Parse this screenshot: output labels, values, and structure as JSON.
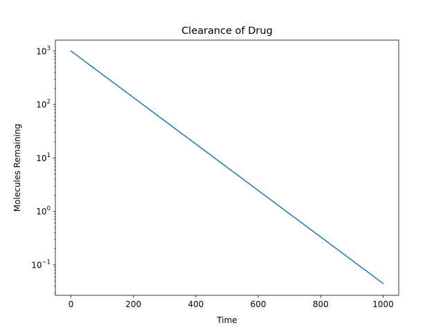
{
  "chart_data": {
    "type": "line",
    "title": "Clearance of Drug",
    "xlabel": "Time",
    "ylabel": "Molecules Remaining",
    "yscale": "log",
    "xlim": [
      -50,
      1050
    ],
    "ylim": [
      0.027,
      1600
    ],
    "x_ticks": [
      {
        "value": 0,
        "label": "0"
      },
      {
        "value": 200,
        "label": "200"
      },
      {
        "value": 400,
        "label": "400"
      },
      {
        "value": 600,
        "label": "600"
      },
      {
        "value": 800,
        "label": "800"
      },
      {
        "value": 1000,
        "label": "1000"
      }
    ],
    "y_ticks": [
      {
        "value": 1000,
        "base": "10",
        "exp": "3"
      },
      {
        "value": 100,
        "base": "10",
        "exp": "2"
      },
      {
        "value": 10,
        "base": "10",
        "exp": "1"
      },
      {
        "value": 1,
        "base": "10",
        "exp": "0"
      },
      {
        "value": 0.1,
        "base": "10",
        "exp": "−1"
      }
    ],
    "grid": false,
    "series": [
      {
        "color": "#1f77b4",
        "x": [
          0,
          1000
        ],
        "y": [
          1000,
          0.045
        ]
      }
    ]
  }
}
